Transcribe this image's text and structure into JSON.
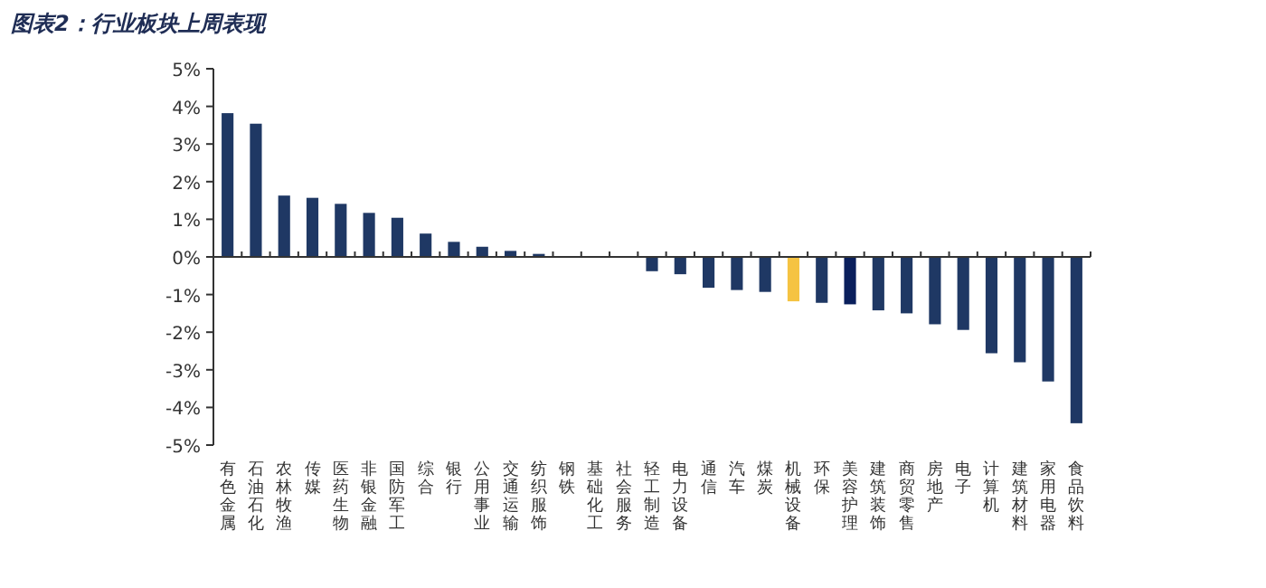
{
  "chart_data": {
    "type": "bar",
    "title": "图表2：行业板块上周表现",
    "categories": [
      "有色金属",
      "石油石化",
      "农林牧渔",
      "传媒",
      "医药生物",
      "非银金融",
      "国防军工",
      "综合",
      "银行",
      "公用事业",
      "交通运输",
      "纺织服饰",
      "钢铁",
      "基础化工",
      "社会服务",
      "轻工制造",
      "电力设备",
      "通信",
      "汽车",
      "煤炭",
      "机械设备",
      "环保",
      "美容护理",
      "建筑装饰",
      "商贸零售",
      "房地产",
      "电子",
      "计算机",
      "建筑材料",
      "家用电器",
      "食品饮料"
    ],
    "values": [
      3.82,
      3.54,
      1.63,
      1.57,
      1.41,
      1.17,
      1.04,
      0.62,
      0.4,
      0.27,
      0.16,
      0.08,
      0.02,
      0.01,
      -0.01,
      -0.38,
      -0.46,
      -0.82,
      -0.88,
      -0.93,
      -1.18,
      -1.22,
      -1.26,
      -1.42,
      -1.5,
      -1.79,
      -1.94,
      -2.56,
      -2.8,
      -3.31,
      -4.42
    ],
    "colors": [
      "#1f3864",
      "#1f3864",
      "#1f3864",
      "#1f3864",
      "#1f3864",
      "#1f3864",
      "#1f3864",
      "#1f3864",
      "#1f3864",
      "#1f3864",
      "#1f3864",
      "#1f3864",
      "#1f3864",
      "#1f3864",
      "#1f3864",
      "#1f3864",
      "#1f3864",
      "#1f3864",
      "#1f3864",
      "#1f3864",
      "#f5c342",
      "#1f3864",
      "#0a1f5c",
      "#1f3864",
      "#1f3864",
      "#1f3864",
      "#1f3864",
      "#1f3864",
      "#1f3864",
      "#1f3864",
      "#1f3864"
    ],
    "ylim": [
      -5,
      5
    ],
    "yticks": [
      {
        "value": -5,
        "label": "-5%"
      },
      {
        "value": -4,
        "label": "-4%"
      },
      {
        "value": -3,
        "label": "-3%"
      },
      {
        "value": -2,
        "label": "-2%"
      },
      {
        "value": -1,
        "label": "-1%"
      },
      {
        "value": 0,
        "label": "0%"
      },
      {
        "value": 1,
        "label": "1%"
      },
      {
        "value": 2,
        "label": "2%"
      },
      {
        "value": 3,
        "label": "3%"
      },
      {
        "value": 4,
        "label": "4%"
      },
      {
        "value": 5,
        "label": "5%"
      }
    ]
  }
}
